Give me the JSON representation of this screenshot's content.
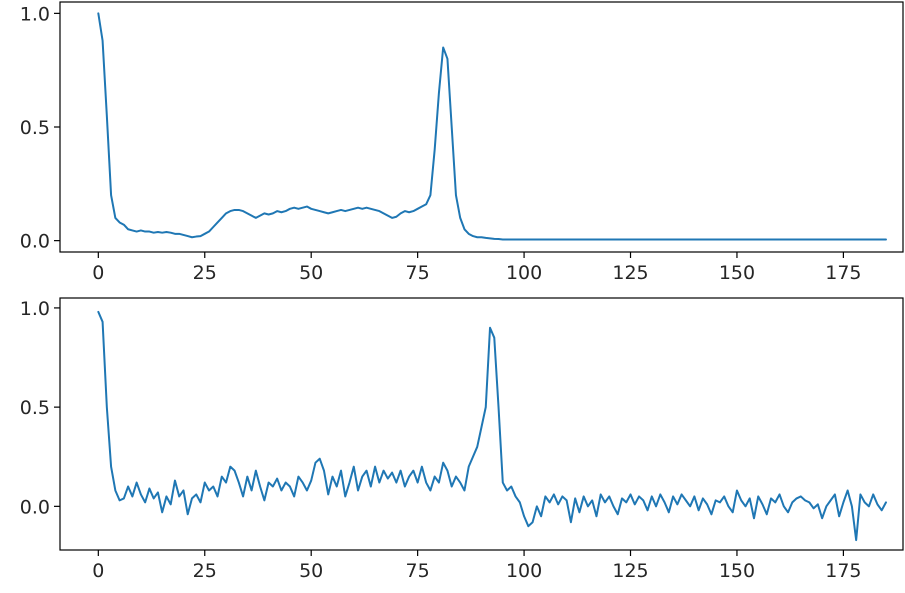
{
  "chart_data": [
    {
      "type": "line",
      "title": "",
      "xlabel": "",
      "ylabel": "",
      "xlim": [
        -9,
        189
      ],
      "ylim": [
        -0.05,
        1.05
      ],
      "xticks": [
        0,
        25,
        50,
        75,
        100,
        125,
        150,
        175
      ],
      "yticks": [
        0.0,
        0.5,
        1.0
      ],
      "ytick_labels": [
        "0.0",
        "0.5",
        "1.0"
      ],
      "grid": false,
      "color": "#1f77b4",
      "series": [
        {
          "x": [
            0,
            1,
            2,
            3,
            4,
            5,
            6,
            7,
            8,
            9,
            10,
            11,
            12,
            13,
            14,
            15,
            16,
            17,
            18,
            19,
            20,
            21,
            22,
            23,
            24,
            25,
            26,
            27,
            28,
            29,
            30,
            31,
            32,
            33,
            34,
            35,
            36,
            37,
            38,
            39,
            40,
            41,
            42,
            43,
            44,
            45,
            46,
            47,
            48,
            49,
            50,
            51,
            52,
            53,
            54,
            55,
            56,
            57,
            58,
            59,
            60,
            61,
            62,
            63,
            64,
            65,
            66,
            67,
            68,
            69,
            70,
            71,
            72,
            73,
            74,
            75,
            76,
            77,
            78,
            79,
            80,
            81,
            82,
            83,
            84,
            85,
            86,
            87,
            88,
            89,
            90,
            91,
            92,
            93,
            94,
            95,
            96,
            97,
            98,
            99,
            100,
            101,
            102,
            103,
            104,
            105,
            106,
            107,
            108,
            110,
            115,
            120,
            125,
            130,
            135,
            140,
            145,
            150,
            155,
            160,
            165,
            170,
            175,
            180,
            185
          ],
          "values": [
            1.0,
            0.88,
            0.55,
            0.2,
            0.1,
            0.08,
            0.07,
            0.05,
            0.045,
            0.04,
            0.045,
            0.04,
            0.04,
            0.035,
            0.038,
            0.035,
            0.038,
            0.035,
            0.03,
            0.03,
            0.025,
            0.02,
            0.015,
            0.018,
            0.02,
            0.03,
            0.04,
            0.06,
            0.08,
            0.1,
            0.12,
            0.13,
            0.135,
            0.135,
            0.13,
            0.12,
            0.11,
            0.1,
            0.11,
            0.12,
            0.115,
            0.12,
            0.13,
            0.125,
            0.13,
            0.14,
            0.145,
            0.14,
            0.145,
            0.15,
            0.14,
            0.135,
            0.13,
            0.125,
            0.12,
            0.125,
            0.13,
            0.135,
            0.13,
            0.135,
            0.14,
            0.145,
            0.14,
            0.145,
            0.14,
            0.135,
            0.13,
            0.12,
            0.11,
            0.1,
            0.105,
            0.12,
            0.13,
            0.125,
            0.13,
            0.14,
            0.15,
            0.16,
            0.2,
            0.4,
            0.65,
            0.85,
            0.8,
            0.5,
            0.2,
            0.1,
            0.05,
            0.03,
            0.02,
            0.015,
            0.015,
            0.012,
            0.01,
            0.008,
            0.007,
            0.005,
            0.005,
            0.005,
            0.005,
            0.005,
            0.005,
            0.005,
            0.005,
            0.005,
            0.005,
            0.005,
            0.005,
            0.005,
            0.005,
            0.005,
            0.005,
            0.005,
            0.005,
            0.005,
            0.005,
            0.005,
            0.005,
            0.005,
            0.005,
            0.005,
            0.005,
            0.005,
            0.005,
            0.005,
            0.005
          ]
        }
      ]
    },
    {
      "type": "line",
      "title": "",
      "xlabel": "",
      "ylabel": "",
      "xlim": [
        -9,
        189
      ],
      "ylim": [
        -0.22,
        1.05
      ],
      "xticks": [
        0,
        25,
        50,
        75,
        100,
        125,
        150,
        175
      ],
      "yticks": [
        0.0,
        0.5,
        1.0
      ],
      "ytick_labels": [
        "0.0",
        "0.5",
        "1.0"
      ],
      "grid": false,
      "color": "#1f77b4",
      "series": [
        {
          "x": [
            0,
            1,
            2,
            3,
            4,
            5,
            6,
            7,
            8,
            9,
            10,
            11,
            12,
            13,
            14,
            15,
            16,
            17,
            18,
            19,
            20,
            21,
            22,
            23,
            24,
            25,
            26,
            27,
            28,
            29,
            30,
            31,
            32,
            33,
            34,
            35,
            36,
            37,
            38,
            39,
            40,
            41,
            42,
            43,
            44,
            45,
            46,
            47,
            48,
            49,
            50,
            51,
            52,
            53,
            54,
            55,
            56,
            57,
            58,
            59,
            60,
            61,
            62,
            63,
            64,
            65,
            66,
            67,
            68,
            69,
            70,
            71,
            72,
            73,
            74,
            75,
            76,
            77,
            78,
            79,
            80,
            81,
            82,
            83,
            84,
            85,
            86,
            87,
            88,
            89,
            90,
            91,
            92,
            93,
            94,
            95,
            96,
            97,
            98,
            99,
            100,
            101,
            102,
            103,
            104,
            105,
            106,
            107,
            108,
            109,
            110,
            111,
            112,
            113,
            114,
            115,
            116,
            117,
            118,
            119,
            120,
            121,
            122,
            123,
            124,
            125,
            126,
            127,
            128,
            129,
            130,
            131,
            132,
            133,
            134,
            135,
            136,
            137,
            138,
            139,
            140,
            141,
            142,
            143,
            144,
            145,
            146,
            147,
            148,
            149,
            150,
            151,
            152,
            153,
            154,
            155,
            156,
            157,
            158,
            159,
            160,
            161,
            162,
            163,
            164,
            165,
            166,
            167,
            168,
            169,
            170,
            171,
            172,
            173,
            174,
            175,
            176,
            177,
            178,
            179,
            180,
            181,
            182,
            183,
            184,
            185
          ],
          "values": [
            0.98,
            0.93,
            0.5,
            0.2,
            0.08,
            0.03,
            0.04,
            0.1,
            0.05,
            0.12,
            0.06,
            0.02,
            0.09,
            0.04,
            0.07,
            -0.03,
            0.05,
            0.01,
            0.13,
            0.05,
            0.08,
            -0.04,
            0.04,
            0.06,
            0.02,
            0.12,
            0.08,
            0.1,
            0.05,
            0.15,
            0.12,
            0.2,
            0.18,
            0.12,
            0.05,
            0.15,
            0.08,
            0.18,
            0.1,
            0.03,
            0.12,
            0.1,
            0.14,
            0.08,
            0.12,
            0.1,
            0.05,
            0.15,
            0.12,
            0.08,
            0.13,
            0.22,
            0.24,
            0.18,
            0.06,
            0.15,
            0.1,
            0.18,
            0.05,
            0.12,
            0.2,
            0.08,
            0.15,
            0.18,
            0.1,
            0.2,
            0.12,
            0.18,
            0.14,
            0.17,
            0.12,
            0.18,
            0.1,
            0.15,
            0.18,
            0.12,
            0.2,
            0.12,
            0.08,
            0.15,
            0.12,
            0.22,
            0.18,
            0.1,
            0.15,
            0.12,
            0.08,
            0.2,
            0.25,
            0.3,
            0.4,
            0.5,
            0.9,
            0.85,
            0.5,
            0.12,
            0.08,
            0.1,
            0.05,
            0.02,
            -0.05,
            -0.1,
            -0.08,
            0.0,
            -0.05,
            0.05,
            0.02,
            0.06,
            0.01,
            0.05,
            0.03,
            -0.08,
            0.04,
            -0.03,
            0.05,
            0.0,
            0.03,
            -0.05,
            0.06,
            0.02,
            0.05,
            0.0,
            -0.04,
            0.04,
            0.02,
            0.06,
            0.01,
            0.05,
            0.03,
            -0.02,
            0.05,
            0.0,
            0.06,
            0.02,
            -0.03,
            0.05,
            0.01,
            0.06,
            0.03,
            0.0,
            0.05,
            -0.02,
            0.04,
            0.01,
            -0.04,
            0.03,
            0.02,
            0.05,
            0.0,
            -0.03,
            0.08,
            0.03,
            0.0,
            0.04,
            -0.06,
            0.05,
            0.01,
            -0.04,
            0.04,
            0.02,
            0.06,
            0.0,
            -0.03,
            0.02,
            0.04,
            0.05,
            0.03,
            0.02,
            -0.01,
            0.01,
            -0.06,
            0.0,
            0.03,
            0.06,
            -0.05,
            0.02,
            0.08,
            0.0,
            -0.17,
            0.06,
            0.02,
            0.0,
            0.06,
            0.01,
            -0.02,
            0.02
          ]
        }
      ]
    }
  ]
}
